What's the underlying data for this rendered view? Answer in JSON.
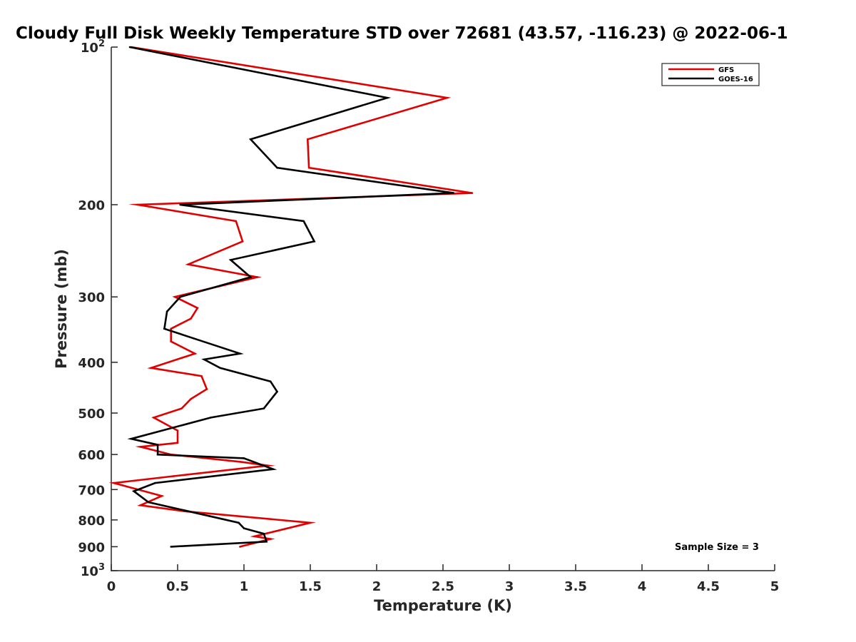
{
  "chart_data": {
    "type": "line",
    "title": "Cloudy Full Disk Weekly Temperature STD over 72681 (43.57, -116.23) @ 2022-06-1",
    "xlabel": "Temperature (K)",
    "ylabel": "Pressure (mb)",
    "xlim": [
      0,
      5
    ],
    "ylim": [
      100,
      1000
    ],
    "yscale": "log",
    "yreversed": true,
    "grid": false,
    "legend_position": "top-right",
    "x_ticks": [
      "0",
      "0.5",
      "1",
      "1.5",
      "2",
      "2.5",
      "3",
      "3.5",
      "4",
      "4.5",
      "5"
    ],
    "y_ticks": [
      {
        "value": 100,
        "base": "10",
        "exp": "2"
      },
      {
        "value": 200,
        "label": "200"
      },
      {
        "value": 300,
        "label": "300"
      },
      {
        "value": 400,
        "label": "400"
      },
      {
        "value": 500,
        "label": "500"
      },
      {
        "value": 600,
        "label": "600"
      },
      {
        "value": 700,
        "label": "700"
      },
      {
        "value": 800,
        "label": "800"
      },
      {
        "value": 900,
        "label": "900"
      },
      {
        "value": 1000,
        "base": "10",
        "exp": "3"
      }
    ],
    "annotation": "Sample Size = 3",
    "series": [
      {
        "name": "GFS",
        "color": "#e00000",
        "points": [
          [
            0.15,
            100
          ],
          [
            2.53,
            125
          ],
          [
            1.48,
            150
          ],
          [
            1.49,
            170
          ],
          [
            2.72,
            190
          ],
          [
            0.2,
            200
          ],
          [
            0.94,
            215
          ],
          [
            0.99,
            235
          ],
          [
            0.58,
            260
          ],
          [
            1.1,
            275
          ],
          [
            0.48,
            300
          ],
          [
            0.65,
            315
          ],
          [
            0.6,
            330
          ],
          [
            0.45,
            345
          ],
          [
            0.45,
            365
          ],
          [
            0.63,
            385
          ],
          [
            0.3,
            410
          ],
          [
            0.68,
            425
          ],
          [
            0.72,
            450
          ],
          [
            0.6,
            470
          ],
          [
            0.53,
            490
          ],
          [
            0.32,
            510
          ],
          [
            0.5,
            540
          ],
          [
            0.5,
            570
          ],
          [
            0.22,
            580
          ],
          [
            0.45,
            600
          ],
          [
            0.98,
            620
          ],
          [
            1.18,
            630
          ],
          [
            0.47,
            660
          ],
          [
            0.02,
            680
          ],
          [
            0.38,
            720
          ],
          [
            0.22,
            750
          ],
          [
            0.55,
            770
          ],
          [
            1.5,
            810
          ],
          [
            1.08,
            860
          ],
          [
            1.2,
            870
          ],
          [
            0.97,
            900
          ]
        ]
      },
      {
        "name": "GOES-16",
        "color": "#000000",
        "points": [
          [
            0.14,
            100
          ],
          [
            2.08,
            125
          ],
          [
            1.05,
            150
          ],
          [
            1.25,
            170
          ],
          [
            2.58,
            190
          ],
          [
            0.52,
            200
          ],
          [
            1.45,
            215
          ],
          [
            1.53,
            235
          ],
          [
            0.9,
            255
          ],
          [
            1.05,
            275
          ],
          [
            0.52,
            300
          ],
          [
            0.42,
            320
          ],
          [
            0.4,
            345
          ],
          [
            0.62,
            360
          ],
          [
            0.97,
            385
          ],
          [
            0.7,
            395
          ],
          [
            0.82,
            410
          ],
          [
            1.2,
            435
          ],
          [
            1.25,
            455
          ],
          [
            1.15,
            490
          ],
          [
            0.75,
            510
          ],
          [
            0.15,
            560
          ],
          [
            0.35,
            575
          ],
          [
            0.35,
            600
          ],
          [
            1.0,
            610
          ],
          [
            1.22,
            640
          ],
          [
            0.33,
            680
          ],
          [
            0.17,
            705
          ],
          [
            0.28,
            740
          ],
          [
            0.58,
            770
          ],
          [
            0.96,
            810
          ],
          [
            1.0,
            830
          ],
          [
            1.15,
            850
          ],
          [
            1.17,
            880
          ],
          [
            0.45,
            900
          ]
        ]
      }
    ]
  }
}
